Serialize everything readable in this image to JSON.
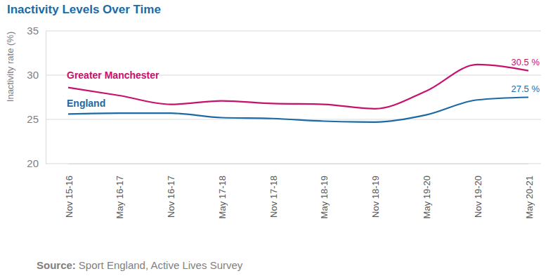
{
  "chart_data": {
    "type": "line",
    "title": "Inactivity Levels Over Time",
    "y_label": "Inactivity rate (%)",
    "categories": [
      "Nov 15-16",
      "May 16-17",
      "Nov 16-17",
      "May 17-18",
      "Nov 17-18",
      "May 18-19",
      "Nov 18-19",
      "May 19-20",
      "Nov 19-20",
      "May 20-21"
    ],
    "series": [
      {
        "name": "Greater Manchester",
        "color": "#c8106e",
        "values": [
          28.6,
          27.7,
          26.7,
          27.1,
          26.8,
          26.7,
          26.2,
          28.2,
          31.2,
          30.5
        ],
        "value_labels": [
          null,
          null,
          null,
          null,
          null,
          null,
          null,
          null,
          null,
          "30.5 %"
        ]
      },
      {
        "name": "England",
        "color": "#1b6aa5",
        "values": [
          25.6,
          25.7,
          25.7,
          25.2,
          25.1,
          24.8,
          24.7,
          25.5,
          27.2,
          27.5
        ],
        "value_labels": [
          null,
          null,
          null,
          null,
          null,
          null,
          null,
          null,
          null,
          "27.5 %"
        ]
      }
    ],
    "ylim": [
      20,
      35
    ],
    "yticks": [
      20,
      25,
      30,
      35
    ],
    "grid": true,
    "data_labels": true,
    "source_label": "Source:",
    "source": "Sport England, Active Lives Survey"
  }
}
